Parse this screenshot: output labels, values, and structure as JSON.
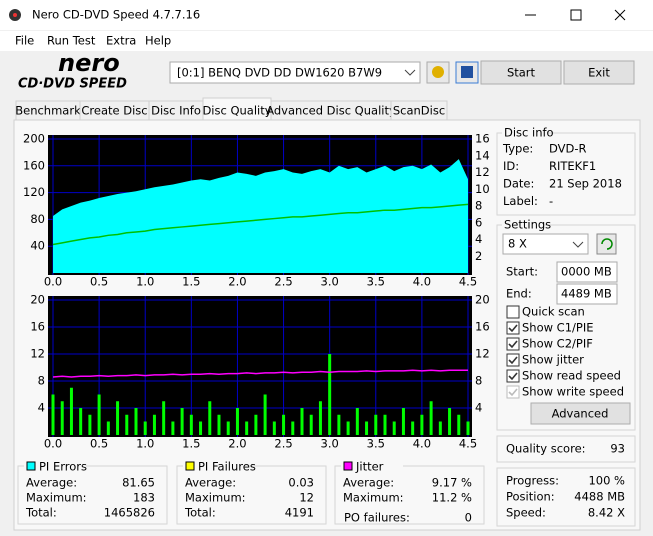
{
  "window": {
    "title": "Nero CD-DVD Speed 4.7.7.16"
  },
  "menu": [
    "File",
    "Run Test",
    "Extra",
    "Help"
  ],
  "toolbar": {
    "logo_top": "nero",
    "logo_bottom": "CD·DVD SPEED",
    "drive": "[0:1]  BENQ DVD DD DW1620 B7W9",
    "start": "Start",
    "exit": "Exit"
  },
  "tabs": {
    "items": [
      "Benchmark",
      "Create Disc",
      "Disc Info",
      "Disc Quality",
      "Advanced Disc Quality",
      "ScanDisc"
    ],
    "active": 3
  },
  "chart_data": [
    {
      "type": "combo",
      "x": [
        0,
        0.1,
        0.2,
        0.3,
        0.4,
        0.5,
        0.6,
        0.7,
        0.8,
        0.9,
        1,
        1.1,
        1.2,
        1.3,
        1.4,
        1.5,
        1.6,
        1.7,
        1.8,
        1.9,
        2,
        2.1,
        2.2,
        2.3,
        2.4,
        2.5,
        2.6,
        2.7,
        2.8,
        2.9,
        3,
        3.1,
        3.2,
        3.3,
        3.4,
        3.5,
        3.6,
        3.7,
        3.8,
        3.9,
        4,
        4.1,
        4.2,
        4.3,
        4.4,
        4.5
      ],
      "xlim": [
        0,
        4.5
      ],
      "xticks": [
        {
          "value": 0,
          "label": "0.0"
        },
        0.5,
        {
          "value": 1,
          "label": "1.0"
        },
        1.5,
        {
          "value": 2,
          "label": "2.0"
        },
        2.5,
        {
          "value": 3,
          "label": "3.0"
        },
        3.5,
        {
          "value": 4,
          "label": "4.0"
        },
        4.5
      ],
      "ylim": [
        0,
        200
      ],
      "yticks": [
        40,
        80,
        120,
        160,
        200
      ],
      "y2lim": [
        0,
        16
      ],
      "y2ticks": [
        2,
        4,
        6,
        8,
        10,
        12,
        14,
        16
      ],
      "grid": true,
      "series": [
        {
          "type": "area",
          "color": "#00ffff",
          "values": [
            85,
            95,
            100,
            105,
            108,
            112,
            115,
            118,
            120,
            122,
            125,
            128,
            130,
            132,
            135,
            138,
            140,
            138,
            142,
            145,
            150,
            148,
            145,
            150,
            152,
            155,
            150,
            148,
            152,
            155,
            150,
            160,
            155,
            158,
            150,
            155,
            160,
            152,
            158,
            160,
            155,
            162,
            150,
            158,
            170,
            140
          ]
        },
        {
          "type": "line",
          "axis": "y2",
          "color": "#00c000",
          "values": [
            3.4,
            3.6,
            3.8,
            4.0,
            4.2,
            4.3,
            4.5,
            4.6,
            4.8,
            4.9,
            5.0,
            5.2,
            5.3,
            5.4,
            5.5,
            5.6,
            5.7,
            5.8,
            5.9,
            6.0,
            6.1,
            6.2,
            6.3,
            6.4,
            6.5,
            6.6,
            6.7,
            6.7,
            6.8,
            6.9,
            7.0,
            7.1,
            7.2,
            7.2,
            7.3,
            7.4,
            7.5,
            7.5,
            7.6,
            7.7,
            7.8,
            7.8,
            7.9,
            8.0,
            8.1,
            8.2
          ]
        }
      ]
    },
    {
      "type": "combo",
      "x": [
        0,
        0.1,
        0.2,
        0.3,
        0.4,
        0.5,
        0.6,
        0.7,
        0.8,
        0.9,
        1,
        1.1,
        1.2,
        1.3,
        1.4,
        1.5,
        1.6,
        1.7,
        1.8,
        1.9,
        2,
        2.1,
        2.2,
        2.3,
        2.4,
        2.5,
        2.6,
        2.7,
        2.8,
        2.9,
        3,
        3.1,
        3.2,
        3.3,
        3.4,
        3.5,
        3.6,
        3.7,
        3.8,
        3.9,
        4,
        4.1,
        4.2,
        4.3,
        4.4,
        4.5
      ],
      "xlim": [
        0,
        4.5
      ],
      "xticks": [
        {
          "value": 0,
          "label": "0.0"
        },
        0.5,
        {
          "value": 1,
          "label": "1.0"
        },
        1.5,
        {
          "value": 2,
          "label": "2.0"
        },
        2.5,
        {
          "value": 3,
          "label": "3.0"
        },
        3.5,
        {
          "value": 4,
          "label": "4.0"
        },
        4.5
      ],
      "ylim": [
        0,
        20
      ],
      "yticks": [
        4,
        8,
        12,
        16,
        20
      ],
      "y2lim": [
        0,
        20
      ],
      "y2ticks": [
        4,
        8,
        12,
        16,
        20
      ],
      "grid": true,
      "series": [
        {
          "type": "bar",
          "color": "#00ff00",
          "values": [
            6,
            5,
            7,
            4,
            3,
            6,
            2,
            5,
            3,
            4,
            2,
            3,
            5,
            2,
            4,
            3,
            2,
            5,
            3,
            2,
            4,
            2,
            3,
            6,
            2,
            3,
            2,
            4,
            3,
            5,
            12,
            3,
            2,
            4,
            2,
            3,
            3,
            2,
            4,
            2,
            3,
            5,
            2,
            4,
            3,
            2
          ]
        },
        {
          "type": "line",
          "axis": "y2",
          "color": "#ff00ff",
          "values": [
            8.6,
            8.7,
            8.6,
            8.7,
            8.7,
            8.8,
            8.7,
            8.8,
            8.8,
            8.9,
            8.8,
            8.9,
            8.9,
            9.0,
            8.9,
            9.0,
            9.0,
            9.1,
            9.0,
            9.1,
            9.1,
            9.2,
            9.1,
            9.2,
            9.2,
            9.3,
            9.2,
            9.3,
            9.3,
            9.4,
            9.3,
            9.4,
            9.4,
            9.4,
            9.5,
            9.4,
            9.5,
            9.5,
            9.5,
            9.6,
            9.5,
            9.6,
            9.5,
            9.6,
            9.6,
            9.6
          ]
        }
      ]
    }
  ],
  "disc_info": {
    "title": "Disc info",
    "rows": [
      [
        "Type:",
        "DVD-R"
      ],
      [
        "ID:",
        "RITEKF1"
      ],
      [
        "Date:",
        "21 Sep 2018"
      ],
      [
        "Label:",
        "-"
      ]
    ]
  },
  "settings": {
    "title": "Settings",
    "speed": "8 X",
    "start_label": "Start:",
    "start": "0000 MB",
    "end_label": "End:",
    "end": "4489 MB",
    "checks": [
      {
        "label": "Quick scan",
        "checked": false,
        "enabled": true
      },
      {
        "label": "Show C1/PIE",
        "checked": true,
        "enabled": true
      },
      {
        "label": "Show C2/PIF",
        "checked": true,
        "enabled": true
      },
      {
        "label": "Show jitter",
        "checked": true,
        "enabled": true
      },
      {
        "label": "Show read speed",
        "checked": true,
        "enabled": true
      },
      {
        "label": "Show write speed",
        "checked": true,
        "enabled": false
      }
    ],
    "advanced": "Advanced"
  },
  "quality": {
    "label": "Quality score:",
    "value": "93"
  },
  "progress": [
    [
      "Progress:",
      "100 %"
    ],
    [
      "Position:",
      "4488 MB"
    ],
    [
      "Speed:",
      "8.42 X"
    ]
  ],
  "stats": [
    {
      "title": "PI Errors",
      "color": "#00ffff",
      "rows": [
        [
          "Average:",
          "81.65"
        ],
        [
          "Maximum:",
          "183"
        ],
        [
          "Total:",
          "1465826"
        ]
      ]
    },
    {
      "title": "PI Failures",
      "color": "#ffff00",
      "rows": [
        [
          "Average:",
          "0.03"
        ],
        [
          "Maximum:",
          "12"
        ],
        [
          "Total:",
          "4191"
        ]
      ]
    },
    {
      "title": "Jitter",
      "color": "#ff00ff",
      "rows": [
        [
          "Average:",
          "9.17 %"
        ],
        [
          "Maximum:",
          "11.2 %"
        ]
      ]
    }
  ],
  "po_failures": {
    "label": "PO failures:",
    "value": "0"
  }
}
